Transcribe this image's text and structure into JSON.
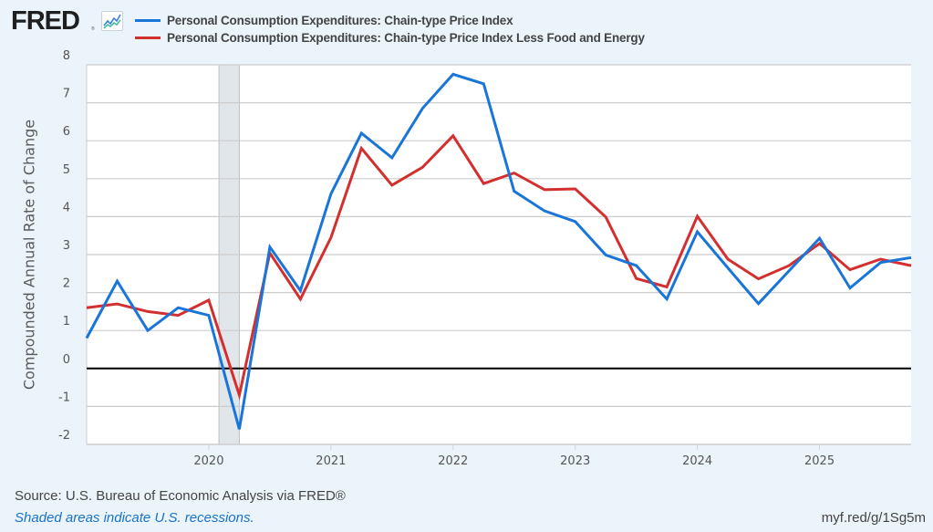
{
  "header": {
    "logo_text": "FRED",
    "logo_registered": "®",
    "logo_icon": "line-chart-icon"
  },
  "footer": {
    "source": "Source: U.S. Bureau of Economic Analysis via FRED®",
    "recession_note": "Shaded areas indicate U.S. recessions.",
    "short_url": "myf.red/g/1Sg5m"
  },
  "chart_data": {
    "type": "line",
    "title": "",
    "xlabel": "",
    "ylabel": "Compounded Annual Rate of Change",
    "ylim": [
      -2,
      8
    ],
    "xlim": [
      "2019-01-01",
      "2025-10-01"
    ],
    "yticks": [
      8,
      7,
      6,
      5,
      4,
      3,
      2,
      1,
      0,
      -1,
      -2
    ],
    "xticks": [
      "2020",
      "2021",
      "2022",
      "2023",
      "2024",
      "2025"
    ],
    "grid": true,
    "legend_position": "top",
    "zero_line": true,
    "recessions": [
      {
        "start": "2020-02-01",
        "end": "2020-04-01"
      }
    ],
    "x": [
      "2019-Q1",
      "2019-Q2",
      "2019-Q3",
      "2019-Q4",
      "2020-Q1",
      "2020-Q2",
      "2020-Q3",
      "2020-Q4",
      "2021-Q1",
      "2021-Q2",
      "2021-Q3",
      "2021-Q4",
      "2022-Q1",
      "2022-Q2",
      "2022-Q3",
      "2022-Q4",
      "2023-Q1",
      "2023-Q2",
      "2023-Q3",
      "2023-Q4",
      "2024-Q1",
      "2024-Q2",
      "2024-Q3",
      "2024-Q4",
      "2025-Q1",
      "2025-Q2",
      "2025-Q3",
      "2025-Q4"
    ],
    "series": [
      {
        "name": "Personal Consumption Expenditures: Chain-type Price Index",
        "color": "#1a75d9",
        "values": [
          0.8,
          2.3,
          1.0,
          1.6,
          1.4,
          -1.6,
          3.2,
          2.05,
          4.6,
          6.2,
          5.55,
          6.85,
          7.75,
          7.5,
          4.67,
          4.15,
          3.87,
          2.99,
          2.71,
          1.83,
          3.6,
          2.65,
          1.71,
          2.57,
          3.43,
          2.12,
          2.79,
          2.92
        ]
      },
      {
        "name": "Personal Consumption Expenditures: Chain-type Price Index Less Food and Energy",
        "color": "#d32f2f",
        "values": [
          1.6,
          1.7,
          1.5,
          1.4,
          1.8,
          -0.7,
          3.04,
          1.83,
          3.45,
          5.8,
          4.83,
          5.3,
          6.13,
          4.87,
          5.15,
          4.71,
          4.73,
          3.99,
          2.37,
          2.15,
          4.01,
          2.88,
          2.36,
          2.71,
          3.29,
          2.6,
          2.88,
          2.71
        ]
      }
    ]
  }
}
